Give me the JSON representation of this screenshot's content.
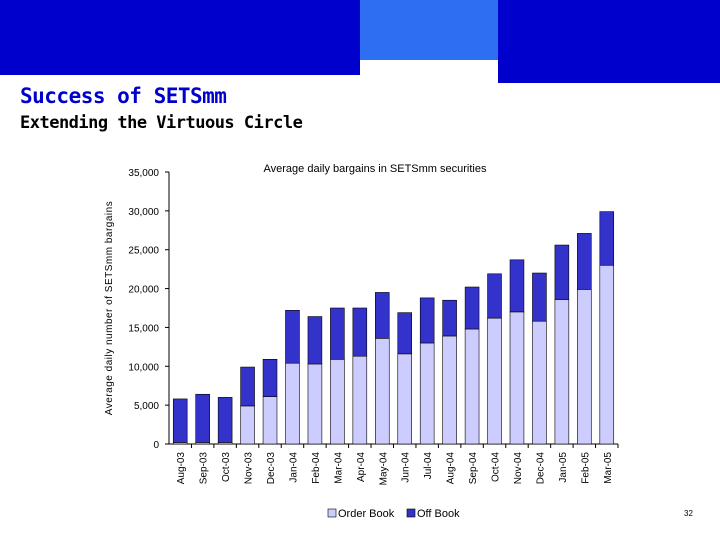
{
  "header": {
    "title": "Success of SETSmm",
    "subtitle": "Extending the Virtuous Circle"
  },
  "footer": {
    "page_number": "32"
  },
  "colors": {
    "band_dark": "#0000cc",
    "band_light": "#2e6ff2",
    "order_book": "#ccccff",
    "off_book": "#3333cc"
  },
  "chart_data": {
    "type": "bar",
    "stacked": true,
    "title": "Average daily bargains in SETSmm securities",
    "xlabel": "",
    "ylabel": "Average daily number of SETSmm bargains",
    "ylim": [
      0,
      35000
    ],
    "yticks": [
      0,
      5000,
      10000,
      15000,
      20000,
      25000,
      30000,
      35000
    ],
    "ytick_labels": [
      "0",
      "5,000",
      "10,000",
      "15,000",
      "20,000",
      "25,000",
      "30,000",
      "35,000"
    ],
    "categories": [
      "Aug-03",
      "Sep-03",
      "Oct-03",
      "Nov-03",
      "Dec-03",
      "Jan-04",
      "Feb-04",
      "Mar-04",
      "Apr-04",
      "May-04",
      "Jun-04",
      "Jul-04",
      "Aug-04",
      "Sep-04",
      "Oct-04",
      "Nov-04",
      "Dec-04",
      "Jan-05",
      "Feb-05",
      "Mar-05"
    ],
    "series": [
      {
        "name": "Order Book",
        "color": "#ccccff",
        "values": [
          200,
          200,
          200,
          4900,
          6100,
          10400,
          10300,
          10900,
          11300,
          13600,
          11600,
          13000,
          13900,
          14800,
          16200,
          17000,
          15800,
          18600,
          19900,
          23000
        ]
      },
      {
        "name": "Off Book",
        "color": "#3333cc",
        "values": [
          5600,
          6200,
          5800,
          5000,
          4800,
          6800,
          6100,
          6600,
          6200,
          5900,
          5300,
          5800,
          4600,
          5400,
          5700,
          6700,
          6200,
          7000,
          7200,
          6900
        ]
      }
    ],
    "legend_position": "bottom"
  }
}
